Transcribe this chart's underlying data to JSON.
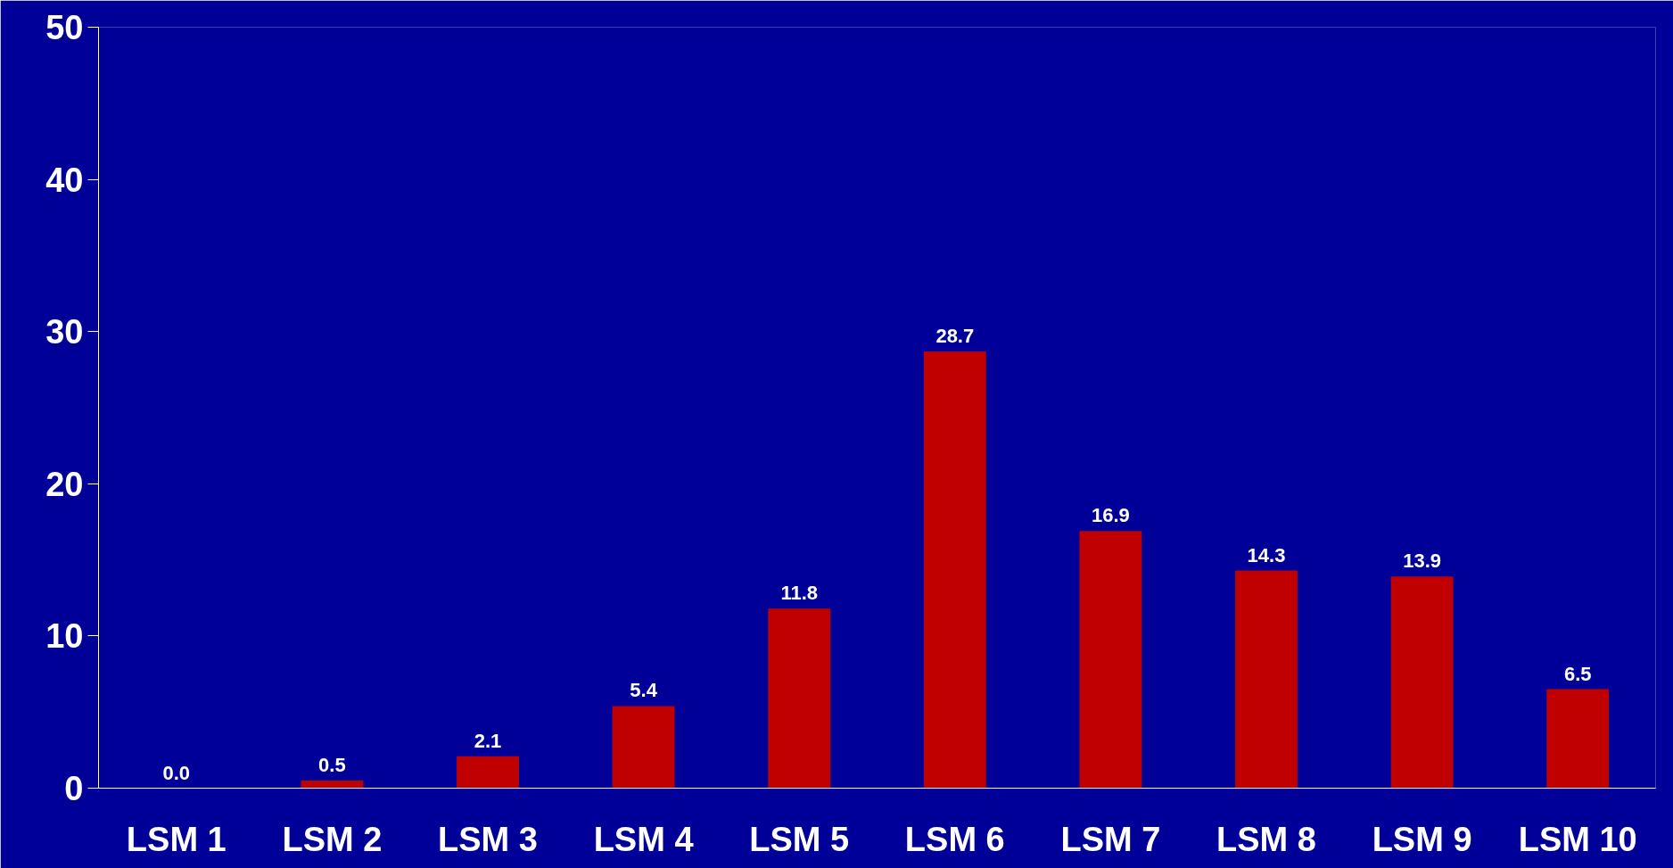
{
  "chart_data": {
    "type": "bar",
    "categories": [
      "LSM 1",
      "LSM 2",
      "LSM 3",
      "LSM 4",
      "LSM 5",
      "LSM 6",
      "LSM 7",
      "LSM 8",
      "LSM 9",
      "LSM 10"
    ],
    "values": [
      0.0,
      0.5,
      2.1,
      5.4,
      11.8,
      28.7,
      16.9,
      14.3,
      13.9,
      6.5
    ],
    "value_labels": [
      "0.0",
      "0.5",
      "2.1",
      "5.4",
      "11.8",
      "28.7",
      "16.9",
      "14.3",
      "13.9",
      "6.5"
    ],
    "color": "#c00000",
    "ylim": [
      0,
      50
    ],
    "yticks": [
      0,
      10,
      20,
      30,
      40,
      50
    ],
    "grid": false
  }
}
